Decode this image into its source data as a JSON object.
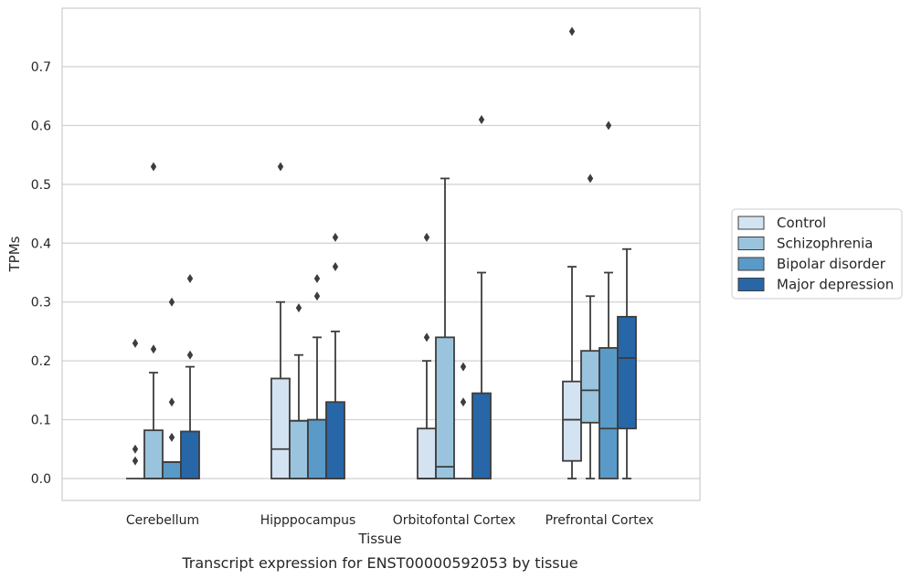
{
  "chart_data": {
    "type": "box",
    "xlabel": "Tissue",
    "ylabel": "TPMs",
    "caption": "Transcript expression for ENST00000592053 by tissue",
    "ylim": [
      -0.037,
      0.79
    ],
    "yticks": [
      0.0,
      0.1,
      0.2,
      0.3,
      0.4,
      0.5,
      0.6,
      0.7
    ],
    "ytick_labels": [
      "0.0",
      "0.1",
      "0.2",
      "0.3",
      "0.4",
      "0.5",
      "0.6",
      "0.7"
    ],
    "grid": "horizontal",
    "legend_position": "right",
    "categories": [
      "Cerebellum",
      "Hipppocampus",
      "Orbitofontal Cortex",
      "Prefrontal Cortex"
    ],
    "series": [
      {
        "name": "Control",
        "color": "#d4e3f2",
        "boxes": [
          {
            "whislo": 0.0,
            "q1": 0.0,
            "med": 0.0,
            "q3": 0.0,
            "whishi": 0.0,
            "fliers": [
              0.03,
              0.05,
              0.23
            ]
          },
          {
            "whislo": 0.0,
            "q1": 0.0,
            "med": 0.05,
            "q3": 0.17,
            "whishi": 0.3,
            "fliers": [
              0.53
            ]
          },
          {
            "whislo": 0.0,
            "q1": 0.0,
            "med": 0.0,
            "q3": 0.085,
            "whishi": 0.2,
            "fliers": [
              0.24,
              0.41
            ]
          },
          {
            "whislo": 0.0,
            "q1": 0.03,
            "med": 0.1,
            "q3": 0.165,
            "whishi": 0.36,
            "fliers": [
              0.76
            ]
          }
        ]
      },
      {
        "name": "Schizophrenia",
        "color": "#9ac4dd",
        "boxes": [
          {
            "whislo": 0.0,
            "q1": 0.0,
            "med": 0.0,
            "q3": 0.082,
            "whishi": 0.18,
            "fliers": [
              0.22,
              0.53
            ]
          },
          {
            "whislo": 0.0,
            "q1": 0.0,
            "med": 0.0,
            "q3": 0.098,
            "whishi": 0.21,
            "fliers": [
              0.29
            ]
          },
          {
            "whislo": 0.0,
            "q1": 0.0,
            "med": 0.02,
            "q3": 0.24,
            "whishi": 0.51,
            "fliers": []
          },
          {
            "whislo": 0.0,
            "q1": 0.095,
            "med": 0.15,
            "q3": 0.217,
            "whishi": 0.31,
            "fliers": [
              0.51
            ]
          }
        ]
      },
      {
        "name": "Bipolar disorder",
        "color": "#5a9ac8",
        "boxes": [
          {
            "whislo": 0.0,
            "q1": 0.0,
            "med": 0.028,
            "q3": 0.028,
            "whishi": 0.028,
            "fliers": [
              0.07,
              0.13,
              0.3
            ]
          },
          {
            "whislo": 0.0,
            "q1": 0.0,
            "med": 0.0,
            "q3": 0.1,
            "whishi": 0.24,
            "fliers": [
              0.31,
              0.34
            ]
          },
          {
            "whislo": 0.0,
            "q1": 0.0,
            "med": 0.0,
            "q3": 0.0,
            "whishi": 0.0,
            "fliers": [
              0.13,
              0.19
            ]
          },
          {
            "whislo": 0.0,
            "q1": 0.0,
            "med": 0.085,
            "q3": 0.222,
            "whishi": 0.35,
            "fliers": [
              0.6
            ]
          }
        ]
      },
      {
        "name": "Major depression",
        "color": "#2767a8",
        "boxes": [
          {
            "whislo": 0.0,
            "q1": 0.0,
            "med": 0.0,
            "q3": 0.08,
            "whishi": 0.19,
            "fliers": [
              0.21,
              0.34
            ]
          },
          {
            "whislo": 0.0,
            "q1": 0.0,
            "med": 0.0,
            "q3": 0.13,
            "whishi": 0.25,
            "fliers": [
              0.36,
              0.41
            ]
          },
          {
            "whislo": 0.0,
            "q1": 0.0,
            "med": 0.0,
            "q3": 0.145,
            "whishi": 0.35,
            "fliers": [
              0.61
            ]
          },
          {
            "whislo": 0.0,
            "q1": 0.085,
            "med": 0.205,
            "q3": 0.275,
            "whishi": 0.39,
            "fliers": []
          }
        ]
      }
    ]
  }
}
